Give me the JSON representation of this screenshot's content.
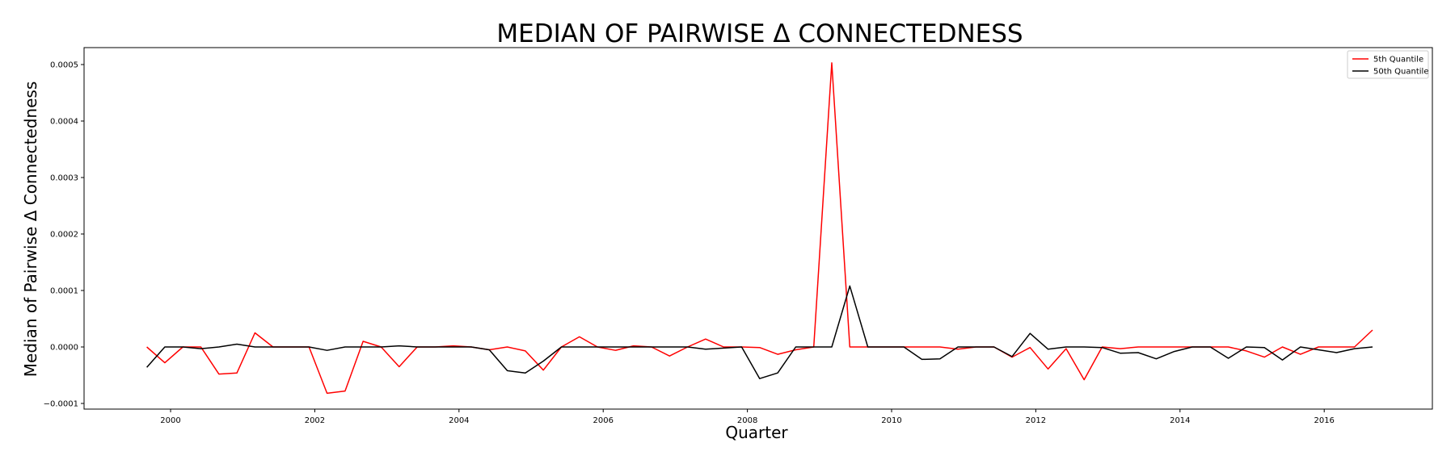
{
  "chart_data": {
    "type": "line",
    "title": "MEDIAN OF PAIRWISE Δ CONNECTEDNESS",
    "xlabel": "Quarter",
    "ylabel": "Median of Pairwise Δ Connectedness",
    "xlim": [
      1998.8,
      2017.5
    ],
    "ylim": [
      -0.00011,
      0.00053
    ],
    "xticks": [
      2000,
      2002,
      2004,
      2006,
      2008,
      2010,
      2012,
      2014,
      2016
    ],
    "xtick_labels": [
      "2000",
      "2002",
      "2004",
      "2006",
      "2008",
      "2010",
      "2012",
      "2014",
      "2016"
    ],
    "yticks": [
      -0.0001,
      0.0,
      0.0001,
      0.0002,
      0.0003,
      0.0004,
      0.0005
    ],
    "ytick_labels": [
      "−0.0001",
      "0.0000",
      "0.0001",
      "0.0002",
      "0.0003",
      "0.0004",
      "0.0005"
    ],
    "legend_position": "top-right",
    "grid": false,
    "x": [
      1999.67,
      1999.92,
      2000.17,
      2000.42,
      2000.67,
      2000.92,
      2001.17,
      2001.42,
      2001.67,
      2001.92,
      2002.17,
      2002.42,
      2002.67,
      2002.92,
      2003.17,
      2003.42,
      2003.67,
      2003.92,
      2004.17,
      2004.42,
      2004.67,
      2004.92,
      2005.17,
      2005.42,
      2005.67,
      2005.92,
      2006.17,
      2006.42,
      2006.67,
      2006.92,
      2007.17,
      2007.42,
      2007.67,
      2007.92,
      2008.17,
      2008.42,
      2008.67,
      2008.92,
      2009.17,
      2009.42,
      2009.67,
      2009.92,
      2010.17,
      2010.42,
      2010.67,
      2010.92,
      2011.17,
      2011.42,
      2011.67,
      2011.92,
      2012.17,
      2012.42,
      2012.67,
      2012.92,
      2013.17,
      2013.42,
      2013.67,
      2013.92,
      2014.17,
      2014.42,
      2014.67,
      2014.92,
      2015.17,
      2015.42,
      2015.67,
      2015.92,
      2016.17,
      2016.42,
      2016.67
    ],
    "series": [
      {
        "name": "5th Quantile",
        "color": "#ff0000",
        "values": [
          0.0,
          -2.8e-05,
          0.0,
          0.0,
          -4.8e-05,
          -4.6e-05,
          2.5e-05,
          0.0,
          0.0,
          0.0,
          -8.2e-05,
          -7.8e-05,
          1e-05,
          0.0,
          -3.5e-05,
          0.0,
          0.0,
          2e-06,
          0.0,
          -5e-06,
          0.0,
          -7e-06,
          -4.1e-05,
          0.0,
          1.8e-05,
          0.0,
          -6e-06,
          2e-06,
          0.0,
          -1.6e-05,
          0.0,
          1.4e-05,
          0.0,
          0.0,
          -1e-06,
          -1.3e-05,
          -5e-06,
          0.0,
          0.000503,
          0.0,
          0.0,
          0.0,
          0.0,
          0.0,
          0.0,
          -4e-06,
          0.0,
          0.0,
          -1.8e-05,
          -1e-06,
          -3.9e-05,
          -3e-06,
          -5.8e-05,
          0.0,
          -3e-06,
          0.0,
          0.0,
          0.0,
          0.0,
          0.0,
          0.0,
          -7e-06,
          -1.8e-05,
          0.0,
          -1.3e-05,
          0.0,
          0.0,
          0.0,
          3e-05
        ]
      },
      {
        "name": "50th Quantile",
        "color": "#000000",
        "values": [
          -3.6e-05,
          0.0,
          0.0,
          -3e-06,
          0.0,
          5e-06,
          0.0,
          0.0,
          0.0,
          0.0,
          -6e-06,
          0.0,
          0.0,
          0.0,
          2e-06,
          0.0,
          0.0,
          0.0,
          0.0,
          -5e-06,
          -4.2e-05,
          -4.6e-05,
          -2.5e-05,
          0.0,
          0.0,
          0.0,
          0.0,
          0.0,
          0.0,
          0.0,
          0.0,
          -4e-06,
          -2e-06,
          0.0,
          -5.6e-05,
          -4.6e-05,
          0.0,
          0.0,
          0.0,
          0.000108,
          0.0,
          0.0,
          0.0,
          -2.2e-05,
          -2.1e-05,
          0.0,
          0.0,
          0.0,
          -1.7e-05,
          2.4e-05,
          -4e-06,
          0.0,
          0.0,
          -1e-06,
          -1.1e-05,
          -1e-05,
          -2.1e-05,
          -8e-06,
          0.0,
          0.0,
          -2e-05,
          0.0,
          -1e-06,
          -2.3e-05,
          0.0,
          -5e-06,
          -1e-05,
          -3e-06,
          0.0
        ]
      }
    ]
  }
}
